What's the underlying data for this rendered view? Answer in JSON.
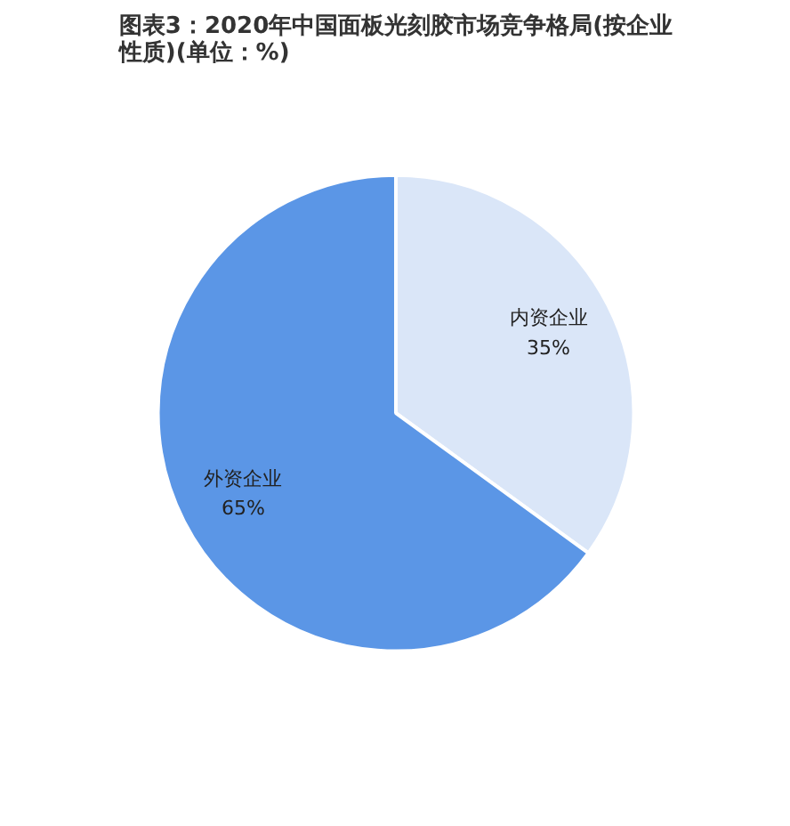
{
  "chart_data": {
    "type": "pie",
    "title": "图表3：2020年中国面板光刻胶市场竞争格局(按企业性质)(单位：%)",
    "categories": [
      "内资企业",
      "外资企业"
    ],
    "values": [
      35,
      65
    ],
    "colors": [
      "#dae6f8",
      "#5b96e6"
    ],
    "value_labels": [
      "35%",
      "65%"
    ]
  }
}
